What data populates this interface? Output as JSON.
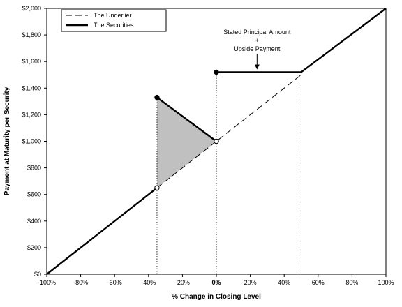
{
  "chart_data": {
    "type": "line",
    "title": "",
    "xlabel": "% Change in Closing Level",
    "ylabel": "Payment at Maturity per Security",
    "xlim": [
      -100,
      100
    ],
    "ylim": [
      0,
      2000
    ],
    "x_ticks": [
      -100,
      -80,
      -60,
      -40,
      -20,
      0,
      20,
      40,
      60,
      80,
      100
    ],
    "x_tick_labels": [
      "-100%",
      "-80%",
      "-60%",
      "-40%",
      "-20%",
      "0%",
      "20%",
      "40%",
      "60%",
      "80%",
      "100%"
    ],
    "y_ticks": [
      0,
      200,
      400,
      600,
      800,
      1000,
      1200,
      1400,
      1600,
      1800,
      2000
    ],
    "y_tick_labels": [
      "$0",
      "$200",
      "$400",
      "$600",
      "$800",
      "$1,000",
      "$1,200",
      "$1,400",
      "$1,600",
      "$1,800",
      "$2,000"
    ],
    "grid": false,
    "legend_position": "top-left",
    "series": [
      {
        "name": "The Underlier",
        "style": "dashed",
        "color": "#000000",
        "x": [
          -35,
          50
        ],
        "y": [
          650,
          1500
        ]
      },
      {
        "name": "The Securities",
        "style": "solid-thick",
        "color": "#000000",
        "segments": [
          {
            "x": [
              -100,
              -35
            ],
            "y": [
              0,
              650
            ]
          },
          {
            "x": [
              -35,
              0
            ],
            "y": [
              1330,
              1000
            ]
          },
          {
            "x": [
              0,
              50
            ],
            "y": [
              1520,
              1520
            ]
          },
          {
            "x": [
              50,
              100
            ],
            "y": [
              1520,
              2000
            ]
          }
        ]
      }
    ],
    "points": [
      {
        "x": -35,
        "y": 1330,
        "fill": "filled"
      },
      {
        "x": 0,
        "y": 1520,
        "fill": "filled"
      },
      {
        "x": -35,
        "y": 650,
        "fill": "open"
      },
      {
        "x": 0,
        "y": 1000,
        "fill": "open"
      }
    ],
    "shaded_region": {
      "color": "#c0c0c0",
      "x": [
        -35,
        -35,
        0
      ],
      "y": [
        650,
        1330,
        1000
      ]
    },
    "reference_lines": [
      {
        "x": -35,
        "y_from": 0,
        "y_to": 1330
      },
      {
        "x": 0,
        "y_from": 0,
        "y_to": 1520
      },
      {
        "x": 50,
        "y_from": 0,
        "y_to": 1520
      }
    ],
    "annotation": {
      "lines": [
        "Stated Principal Amount",
        "+",
        "Upside Payment"
      ],
      "arrow_to": {
        "x": 24,
        "y": 1520
      }
    }
  }
}
